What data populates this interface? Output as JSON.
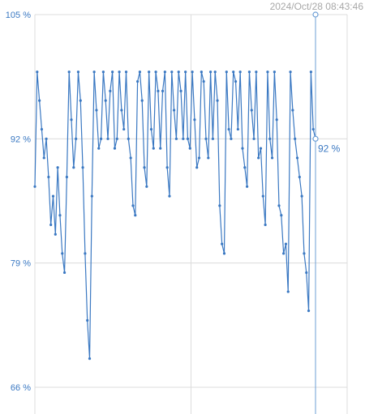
{
  "chart_data": {
    "type": "line",
    "title": "",
    "xlabel": "",
    "ylabel": "",
    "ylim": [
      66,
      105
    ],
    "y_ticks": [
      105,
      92,
      79,
      66
    ],
    "y_tick_labels": [
      "105 %",
      "92 %",
      "79 %",
      "66 %"
    ],
    "x_gridlines": 2,
    "grid": true,
    "series": [
      {
        "values": [
          87,
          99,
          96,
          93,
          90,
          92,
          88,
          83,
          86,
          82,
          89,
          84,
          80,
          78,
          88,
          99,
          94,
          89,
          92,
          99,
          96,
          89,
          80,
          73,
          69,
          86,
          99,
          95,
          91,
          92,
          99,
          96,
          92,
          97,
          99,
          91,
          92,
          99,
          95,
          93,
          99,
          92,
          90,
          85,
          84,
          98,
          99,
          96,
          89,
          87,
          99,
          93,
          91,
          99,
          97,
          91,
          97,
          99,
          89,
          86,
          99,
          95,
          92,
          99,
          97,
          92,
          99,
          92,
          91,
          99,
          94,
          89,
          90,
          99,
          98,
          92,
          90,
          99,
          92,
          99,
          96,
          85,
          81,
          80,
          99,
          93,
          92,
          99,
          98,
          93,
          99,
          91,
          89,
          87,
          99,
          95,
          92,
          99,
          90,
          91,
          86,
          83,
          99,
          92,
          90,
          99,
          94,
          85,
          84,
          80,
          81,
          76,
          99,
          95,
          92,
          90,
          88,
          86,
          80,
          78,
          74,
          99,
          93,
          92
        ]
      }
    ],
    "cursor": {
      "timestamp": "2024/Oct/28 08:43:46",
      "value": 92,
      "value_label": "92 %"
    }
  },
  "colors": {
    "series": "#3a78c2",
    "grid": "#dcdcdc",
    "cursor": "#6d9fd6",
    "timestamp": "#a8a8a8"
  }
}
